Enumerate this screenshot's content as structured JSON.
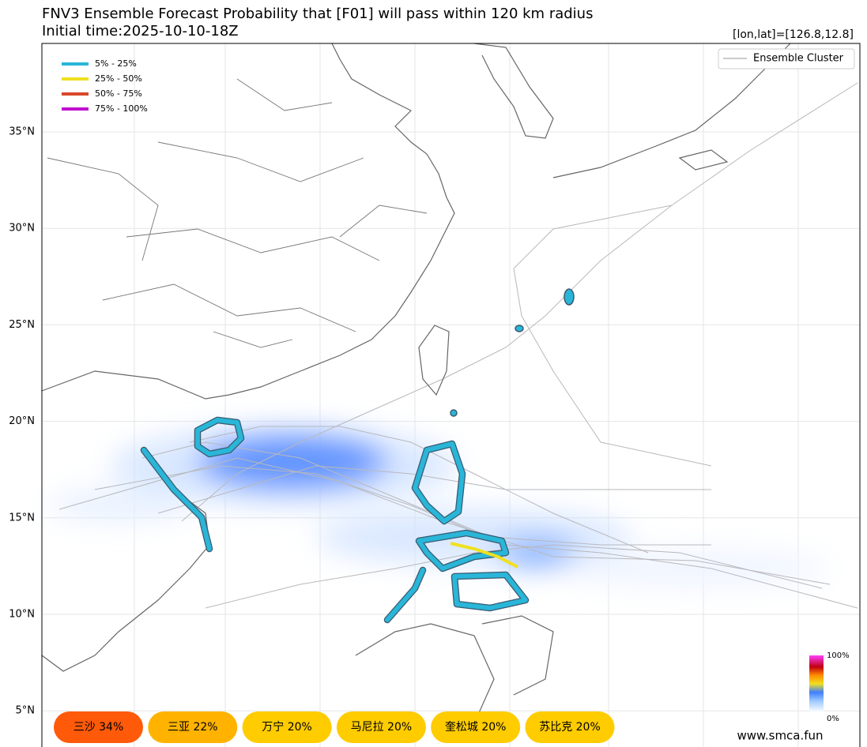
{
  "header": {
    "title": "FNV3 Ensemble Forecast Probability that [F01] will pass within 120 km radius",
    "subtitle": "Initial time:2025-10-10-18Z",
    "position": "[lon,lat]=[126.8,12.8]"
  },
  "legend": {
    "items": [
      {
        "label": "5% - 25%",
        "color": "#29b6d8"
      },
      {
        "label": "25% - 50%",
        "color": "#f0e020"
      },
      {
        "label": "50% - 75%",
        "color": "#d9482b"
      },
      {
        "label": "75% - 100%",
        "color": "#c010d0"
      }
    ],
    "ensemble": "Ensemble Cluster"
  },
  "lat_labels": [
    "35°N",
    "30°N",
    "25°N",
    "20°N",
    "15°N",
    "10°N",
    "5°N"
  ],
  "pills": [
    {
      "label": "三沙 34%",
      "color": "#ff5a0a"
    },
    {
      "label": "三亚 22%",
      "color": "#ffb300"
    },
    {
      "label": "万宁 20%",
      "color": "#ffcc00"
    },
    {
      "label": "马尼拉 20%",
      "color": "#ffcc00"
    },
    {
      "label": "奎松城 20%",
      "color": "#ffcc00"
    },
    {
      "label": "苏比克 20%",
      "color": "#ffcc00"
    }
  ],
  "colorbar": {
    "max": "100%",
    "min": "0%"
  },
  "watermark": "www.smca.fun"
}
